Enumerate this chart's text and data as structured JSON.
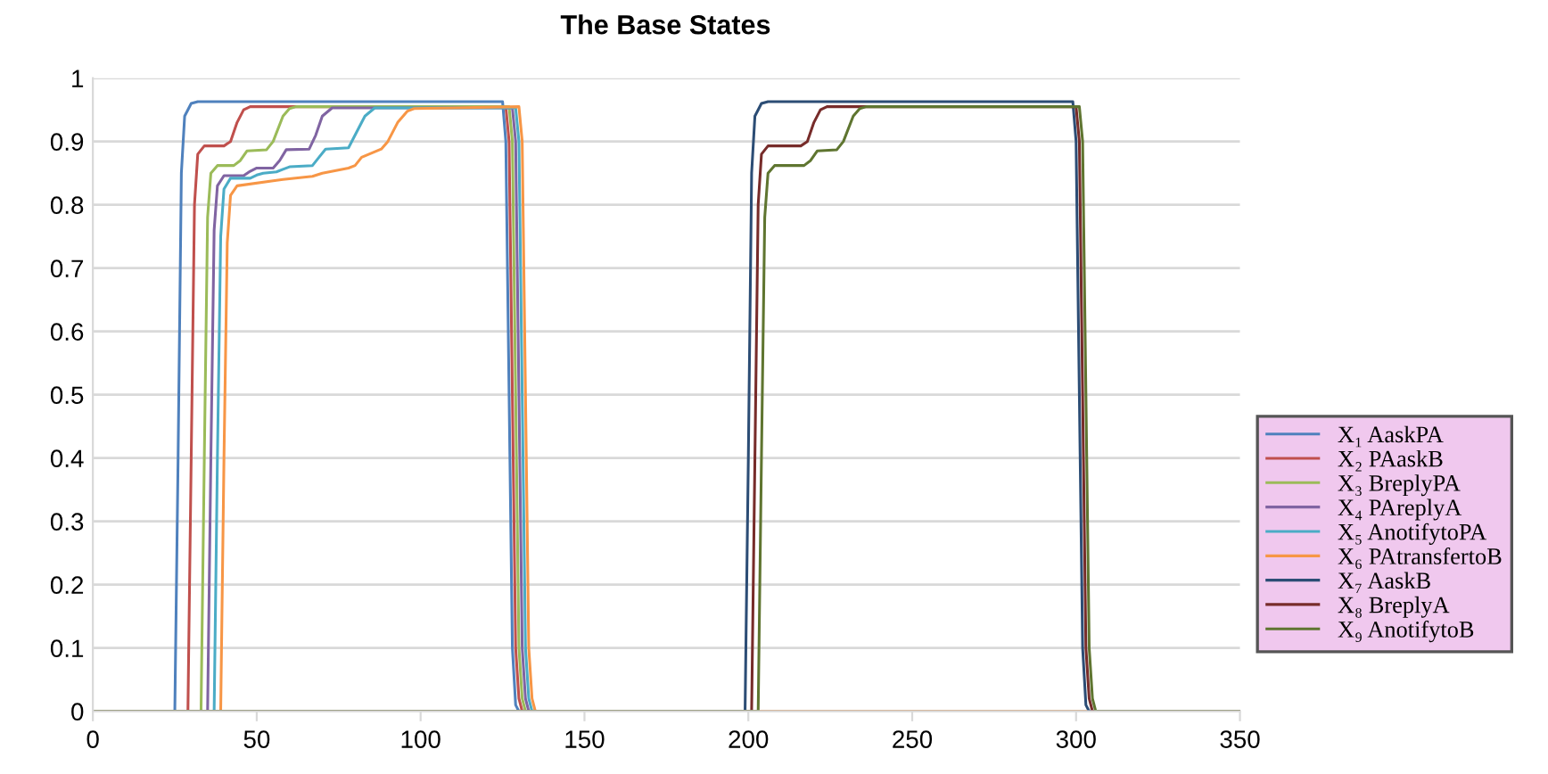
{
  "chart_data": {
    "type": "line",
    "title": "The Base States",
    "xlim": [
      0,
      350
    ],
    "xticks": [
      0,
      50,
      100,
      150,
      200,
      250,
      300,
      350
    ],
    "ylim": [
      0,
      1
    ],
    "yticks": [
      0,
      {
        "value": 0.1,
        "label": "0.1"
      },
      {
        "value": 0.2,
        "label": "0.2"
      },
      {
        "value": 0.3,
        "label": "0.3"
      },
      {
        "value": 0.4,
        "label": "0.4"
      },
      {
        "value": 0.5,
        "label": "0.5"
      },
      {
        "value": 0.6,
        "label": "0.6"
      },
      {
        "value": 0.7,
        "label": "0.7"
      },
      {
        "value": 0.8,
        "label": "0.8"
      },
      {
        "value": 0.9,
        "label": "0.9"
      },
      1
    ],
    "grid": "y",
    "legend": "right",
    "marker": "none",
    "line_style": "solid",
    "series": [
      {
        "name": "X₁ AaskPA",
        "color": "#4f81bd",
        "x": [
          0,
          25,
          26,
          27,
          28,
          30,
          32,
          125,
          126,
          127,
          128,
          129,
          130,
          350
        ],
        "values": [
          0,
          0,
          0.4,
          0.85,
          0.94,
          0.96,
          0.963,
          0.963,
          0.9,
          0.5,
          0.1,
          0.01,
          0,
          0
        ]
      },
      {
        "name": "X₂ PAaskB",
        "color": "#c0504d",
        "x": [
          0,
          29,
          30,
          31,
          32,
          34,
          40,
          42,
          44,
          46,
          48,
          50,
          126,
          127,
          128,
          129,
          130,
          131,
          132,
          350
        ],
        "values": [
          0,
          0,
          0.4,
          0.8,
          0.88,
          0.893,
          0.893,
          0.9,
          0.93,
          0.95,
          0.955,
          0.955,
          0.955,
          0.9,
          0.5,
          0.1,
          0.02,
          0,
          0,
          0
        ]
      },
      {
        "name": "X₃ BreplyPA",
        "color": "#9bbb59",
        "x": [
          0,
          33,
          34,
          35,
          36,
          38,
          43,
          45,
          47,
          53,
          55,
          58,
          60,
          62,
          127,
          128,
          129,
          130,
          131,
          132,
          133,
          350
        ],
        "values": [
          0,
          0,
          0.4,
          0.78,
          0.85,
          0.862,
          0.862,
          0.87,
          0.885,
          0.887,
          0.9,
          0.94,
          0.952,
          0.955,
          0.955,
          0.9,
          0.5,
          0.1,
          0.02,
          0,
          0,
          0
        ]
      },
      {
        "name": "X₄ PAreplyA",
        "color": "#8064a2",
        "x": [
          0,
          35,
          36,
          37,
          38,
          40,
          46,
          48,
          50,
          55,
          57,
          59,
          66,
          68,
          70,
          73,
          128,
          129,
          130,
          131,
          132,
          133,
          134,
          350
        ],
        "values": [
          0,
          0,
          0.4,
          0.76,
          0.83,
          0.846,
          0.846,
          0.853,
          0.858,
          0.858,
          0.87,
          0.887,
          0.888,
          0.91,
          0.94,
          0.953,
          0.953,
          0.9,
          0.5,
          0.1,
          0.02,
          0,
          0,
          0
        ]
      },
      {
        "name": "X₅ AnotifytoPA",
        "color": "#4bacc6",
        "x": [
          0,
          37,
          38,
          39,
          40,
          42,
          48,
          50,
          52,
          56,
          58,
          60,
          67,
          69,
          71,
          78,
          80,
          83,
          86,
          129,
          130,
          131,
          132,
          133,
          134,
          135,
          350
        ],
        "values": [
          0,
          0,
          0.4,
          0.75,
          0.825,
          0.842,
          0.842,
          0.847,
          0.85,
          0.852,
          0.856,
          0.86,
          0.862,
          0.875,
          0.888,
          0.89,
          0.91,
          0.94,
          0.953,
          0.953,
          0.9,
          0.5,
          0.1,
          0.02,
          0,
          0,
          0
        ]
      },
      {
        "name": "X₆ PAtransfertoB",
        "color": "#f79646",
        "x": [
          0,
          39,
          40,
          41,
          42,
          44,
          55,
          58,
          67,
          70,
          78,
          80,
          82,
          88,
          90,
          93,
          96,
          98,
          130,
          131,
          132,
          133,
          134,
          135,
          136,
          350
        ],
        "values": [
          0,
          0,
          0.4,
          0.74,
          0.815,
          0.83,
          0.838,
          0.84,
          0.845,
          0.85,
          0.858,
          0.862,
          0.875,
          0.888,
          0.9,
          0.93,
          0.948,
          0.952,
          0.955,
          0.9,
          0.5,
          0.1,
          0.02,
          0,
          0,
          0
        ]
      },
      {
        "name": "X₇ AaskB",
        "color": "#2c4d75",
        "x": [
          0,
          199,
          200,
          201,
          202,
          204,
          206,
          299,
          300,
          301,
          302,
          303,
          304,
          350
        ],
        "values": [
          0,
          0,
          0.4,
          0.85,
          0.94,
          0.96,
          0.963,
          0.963,
          0.9,
          0.5,
          0.1,
          0.01,
          0,
          0
        ]
      },
      {
        "name": "X₈ BreplyA",
        "color": "#772c2a",
        "x": [
          0,
          201,
          202,
          203,
          204,
          206,
          216,
          218,
          220,
          222,
          224,
          300,
          301,
          302,
          303,
          304,
          305,
          350
        ],
        "values": [
          0,
          0,
          0.4,
          0.8,
          0.88,
          0.893,
          0.893,
          0.9,
          0.93,
          0.95,
          0.955,
          0.955,
          0.9,
          0.5,
          0.1,
          0.02,
          0,
          0
        ]
      },
      {
        "name": "X₉ AnotifytoB",
        "color": "#5f7530",
        "x": [
          0,
          203,
          204,
          205,
          206,
          208,
          217,
          219,
          221,
          227,
          229,
          232,
          234,
          236,
          301,
          302,
          303,
          304,
          305,
          306,
          307,
          350
        ],
        "values": [
          0,
          0,
          0.4,
          0.78,
          0.85,
          0.862,
          0.862,
          0.87,
          0.885,
          0.887,
          0.9,
          0.94,
          0.952,
          0.955,
          0.955,
          0.9,
          0.5,
          0.1,
          0.02,
          0,
          0,
          0
        ]
      }
    ]
  }
}
